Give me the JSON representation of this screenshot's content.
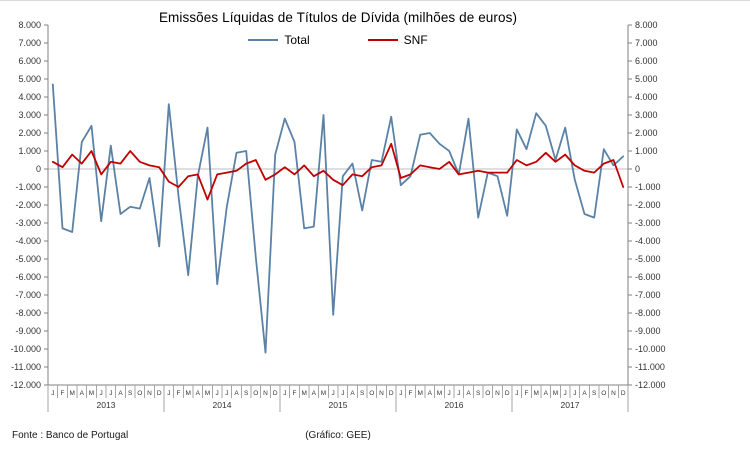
{
  "title": "Emissões Líquidas de Títulos de Dívida (milhões de euros)",
  "legend": {
    "total": "Total",
    "snf": "SNF"
  },
  "footer": {
    "source": "Fonte : Banco de Portugal",
    "credit": "(Gráfico: GEE)"
  },
  "chart_data": {
    "type": "line",
    "title": "Emissões Líquidas de Títulos de Dívida (milhões de euros)",
    "xlabel": "",
    "ylabel": "milhões de euros",
    "ylim": [
      -12000,
      8000
    ],
    "ytick_step": 1000,
    "grid": "zero-line-only",
    "legend_position": "top",
    "month_letters": [
      "J",
      "F",
      "M",
      "A",
      "M",
      "J",
      "J",
      "A",
      "S",
      "O",
      "N",
      "D"
    ],
    "years": [
      "2013",
      "2014",
      "2015",
      "2016",
      "2017"
    ],
    "axis_color": "#808080",
    "zero_line_color": "#bfbfbf",
    "series": [
      {
        "name": "Total",
        "color": "#5b82a6",
        "values": [
          4700,
          -3300,
          -3500,
          1500,
          2400,
          -2900,
          1300,
          -2500,
          -2100,
          -2200,
          -500,
          -4300,
          3600,
          -1500,
          -5900,
          -400,
          2300,
          -6400,
          -2100,
          900,
          1000,
          -4900,
          -10200,
          800,
          2800,
          1500,
          -3300,
          -3200,
          3000,
          -8100,
          -400,
          300,
          -2300,
          500,
          400,
          2900,
          -900,
          -400,
          1900,
          2000,
          1400,
          1000,
          -300,
          2800,
          -2700,
          -200,
          -400,
          -2600,
          2200,
          1100,
          3100,
          2400,
          500,
          2300,
          -600,
          -2500,
          -2700,
          1100,
          200,
          700
        ]
      },
      {
        "name": "SNF",
        "color": "#c00000",
        "values": [
          400,
          100,
          800,
          300,
          1000,
          -300,
          400,
          300,
          1000,
          400,
          200,
          100,
          -700,
          -1000,
          -400,
          -300,
          -1700,
          -300,
          -200,
          -100,
          300,
          500,
          -600,
          -300,
          100,
          -300,
          200,
          -400,
          -100,
          -600,
          -900,
          -300,
          -400,
          100,
          200,
          1400,
          -500,
          -300,
          200,
          100,
          0,
          400,
          -300,
          -200,
          -100,
          -200,
          -200,
          -200,
          500,
          200,
          400,
          900,
          400,
          800,
          200,
          -100,
          -200,
          300,
          500,
          -1000
        ]
      }
    ]
  }
}
